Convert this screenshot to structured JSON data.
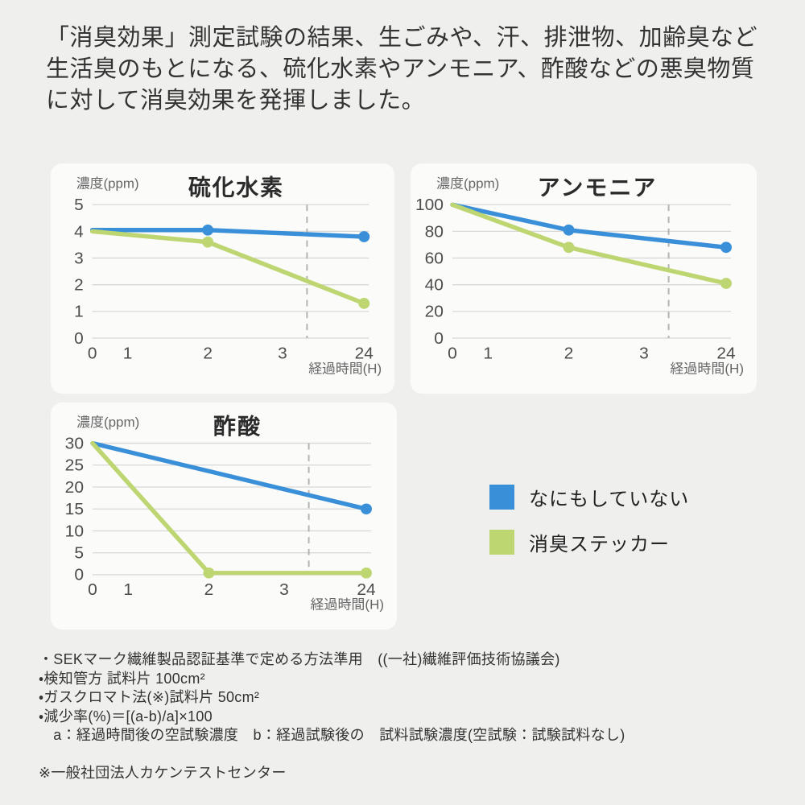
{
  "page": {
    "background": "#efefed",
    "card_background": "#fbfbfa"
  },
  "header": {
    "text": "「消臭効果」測定試験の結果、生ごみや、汗、排泄物、加齢臭など生活臭のもとになる、硫化水素やアンモニア、酢酸などの悪臭物質に対して消臭効果を発揮しました。"
  },
  "colors": {
    "blue": "#3a8fd9",
    "green": "#bdd672",
    "grid": "#d8d8d7",
    "dash": "#b3b3b3",
    "tick": "#4d4d4d",
    "label": "#666666",
    "title": "#2b2b2b"
  },
  "legend": {
    "items": [
      {
        "label": "なにもしていない",
        "color": "#3a8fd9"
      },
      {
        "label": "消臭ステッカー",
        "color": "#bdd672"
      }
    ]
  },
  "chart_data": [
    {
      "type": "line",
      "title": "硫化水素",
      "ylabel": "濃度(ppm)",
      "xlabel": "経過時間(H)",
      "x_ticks": [
        "0",
        "1",
        "2",
        "3",
        "24"
      ],
      "x_tick_rel": [
        0,
        0.13,
        0.425,
        0.7,
        1.0
      ],
      "dashed_line_rel": 0.79,
      "y_ticks": [
        0,
        1,
        2,
        3,
        4,
        5
      ],
      "y_max": 5,
      "grid": true,
      "series": [
        {
          "name": "なにもしていない",
          "color": "#3a8fd9",
          "points": [
            [
              0,
              4.05
            ],
            [
              2,
              4.05
            ],
            [
              24,
              3.8
            ]
          ],
          "markers": [
            2,
            24
          ]
        },
        {
          "name": "消臭ステッカー",
          "color": "#bdd672",
          "points": [
            [
              0,
              4.0
            ],
            [
              2,
              3.6
            ],
            [
              24,
              1.3
            ]
          ],
          "markers": [
            2,
            24
          ]
        }
      ]
    },
    {
      "type": "line",
      "title": "アンモニア",
      "ylabel": "濃度(ppm)",
      "xlabel": "経過時間(H)",
      "x_ticks": [
        "0",
        "1",
        "2",
        "3",
        "24"
      ],
      "x_tick_rel": [
        0,
        0.13,
        0.425,
        0.7,
        1.0
      ],
      "dashed_line_rel": 0.79,
      "y_ticks": [
        0,
        20,
        40,
        60,
        80,
        100
      ],
      "y_max": 100,
      "grid": true,
      "series": [
        {
          "name": "なにもしていない",
          "color": "#3a8fd9",
          "points": [
            [
              0,
              100
            ],
            [
              2,
              81
            ],
            [
              24,
              68
            ]
          ],
          "markers": [
            2,
            24
          ]
        },
        {
          "name": "消臭ステッカー",
          "color": "#bdd672",
          "points": [
            [
              0,
              100
            ],
            [
              2,
              68
            ],
            [
              24,
              41
            ]
          ],
          "markers": [
            2,
            24
          ]
        }
      ]
    },
    {
      "type": "line",
      "title": "酢酸",
      "ylabel": "濃度(ppm)",
      "xlabel": "経過時間(H)",
      "x_ticks": [
        "0",
        "1",
        "2",
        "3",
        "24"
      ],
      "x_tick_rel": [
        0,
        0.13,
        0.425,
        0.7,
        1.0
      ],
      "dashed_line_rel": 0.79,
      "y_ticks": [
        0,
        5,
        10,
        15,
        20,
        25,
        30
      ],
      "y_max": 30,
      "grid": true,
      "series": [
        {
          "name": "なにもしていない",
          "color": "#3a8fd9",
          "points": [
            [
              0,
              30
            ],
            [
              24,
              15
            ]
          ],
          "markers": [
            24
          ]
        },
        {
          "name": "消臭ステッカー",
          "color": "#bdd672",
          "points": [
            [
              0,
              30
            ],
            [
              2,
              0.4
            ],
            [
              24,
              0.4
            ]
          ],
          "markers": [
            2,
            24
          ]
        }
      ]
    }
  ],
  "footnotes": {
    "lines": [
      "・SEKマーク繊維製品認証基準で定める方法準用　((一社)繊維評価技術協議会)",
      "・検知管方 試料片 100cm²",
      "・ガスクロマト法(※)試料片 50cm²",
      "・減少率(%)＝[(a-b)/a]×100",
      "　a：経過時間後の空試験濃度　b：経過試験後の　試料試験濃度(空試験：試験試料なし)",
      "",
      "※一般社団法人カケンテストセンター"
    ]
  }
}
